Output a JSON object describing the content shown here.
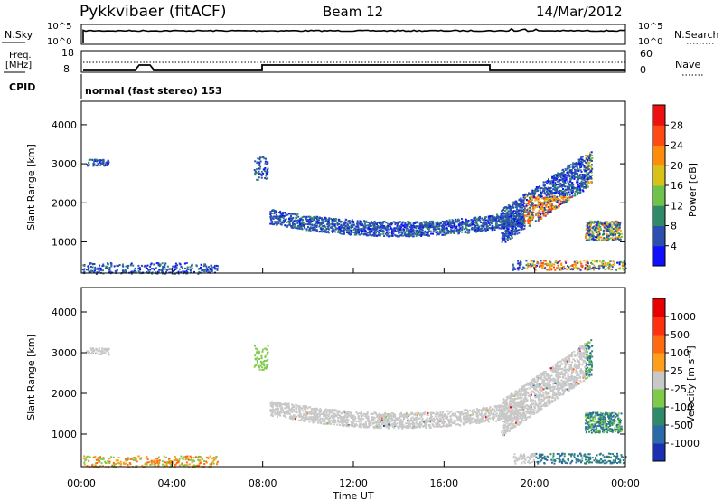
{
  "header": {
    "title": "Pykkvibaer (fitACF)",
    "beam": "Beam 12",
    "date": "14/Mar/2012"
  },
  "noise_panel": {
    "left_label": "N.Sky",
    "left_ticks": [
      "10^5",
      "10^0"
    ],
    "right_ticks": [
      "10^5",
      "10^0"
    ],
    "right_label": "N.Search"
  },
  "freq_panel": {
    "left_label_line1": "Freq.",
    "left_label_line2": "[MHz]",
    "left_ticks": [
      "18",
      "8"
    ],
    "right_ticks": [
      "60",
      "0"
    ],
    "right_label": "Nave"
  },
  "cpid": {
    "label": "CPID",
    "value": "normal (fast stereo) 153"
  },
  "chart_data": [
    {
      "type": "heatmap",
      "name_label": "Power",
      "ylabel": "Slant Range [km]",
      "yticks": [
        "1000",
        "2000",
        "3000",
        "4000"
      ],
      "ylim": [
        200,
        4600
      ],
      "colorbar_label": "Power [dB]",
      "colorbar_ticks": [
        "4",
        "8",
        "12",
        "16",
        "20",
        "24",
        "28"
      ],
      "colorbar_colors": [
        "#1010ff",
        "#2a4fb0",
        "#2f8a6a",
        "#6fc24a",
        "#d8c21a",
        "#ff8c0a",
        "#ff4a14",
        "#ee1010"
      ]
    },
    {
      "type": "heatmap",
      "name_label": "Velocity",
      "ylabel": "Slant Range [km]",
      "yticks": [
        "1000",
        "2000",
        "3000",
        "4000"
      ],
      "ylim": [
        200,
        4600
      ],
      "colorbar_label": "Velocity [m s⁻¹]",
      "colorbar_ticks": [
        "1000",
        "500",
        "100",
        "25",
        "-25",
        "-100",
        "-500",
        "-1000"
      ],
      "colorbar_colors": [
        "#1a30b0",
        "#2a6aa8",
        "#2f8a6a",
        "#7ecb4a",
        "#c8c8c8",
        "#ff9e1a",
        "#ff6a10",
        "#ff3010",
        "#e80000"
      ]
    }
  ],
  "xaxis": {
    "label": "Time UT",
    "ticks": [
      "00:00",
      "04:00",
      "08:00",
      "12:00",
      "16:00",
      "20:00",
      "00:00"
    ]
  },
  "colors": {
    "power_low": "#2a4fb0",
    "power_high": "#ff6a10",
    "velocity_grey": "#c8c8c8"
  }
}
